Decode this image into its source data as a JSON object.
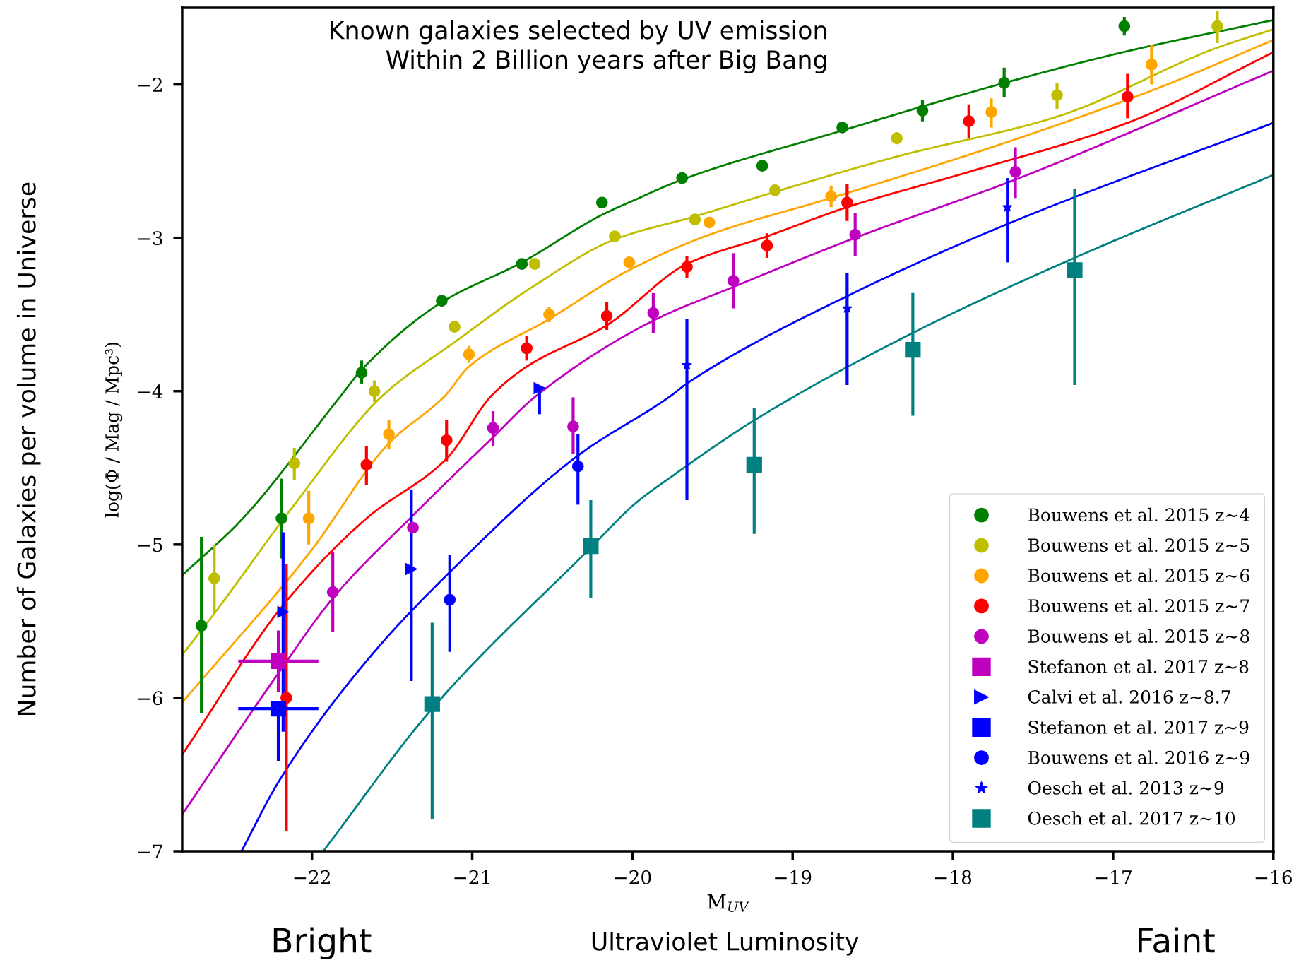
{
  "chart_data": {
    "type": "scatter",
    "xlabel": "M$_{UV}$",
    "ylabel": "log(Φ / Mag / Mpc³)",
    "xlim": [
      -22.81,
      -16
    ],
    "ylim": [
      -7,
      -1.5
    ],
    "xticks": [
      {
        "value": -22,
        "label": "−22"
      },
      {
        "value": -21,
        "label": "−21"
      },
      {
        "value": -20,
        "label": "−20"
      },
      {
        "value": -19,
        "label": "−19"
      },
      {
        "value": -18,
        "label": "−18"
      },
      {
        "value": -17,
        "label": "−17"
      },
      {
        "value": -16,
        "label": "−16"
      }
    ],
    "yticks": [
      {
        "value": -7,
        "label": "−7"
      },
      {
        "value": -6,
        "label": "−6"
      },
      {
        "value": -5,
        "label": "−5"
      },
      {
        "value": -4,
        "label": "−4"
      },
      {
        "value": -3,
        "label": "−3"
      },
      {
        "value": -2,
        "label": "−2"
      }
    ],
    "legend": "bottom right",
    "annotations": [
      "Known galaxies selected by UV emission\nWithin 2 Billion years after Big Bang",
      "Number of Galaxies per volume in Universe",
      "Bright",
      "Ultraviolet Luminosity",
      "Faint"
    ],
    "series": [
      {
        "type": "line",
        "color": "#007f00",
        "x": [
          -22.81,
          -22.45,
          -21.82,
          -21.69,
          -21.19,
          -20.69,
          -20.19,
          -19.98,
          -19.69,
          -18.69,
          -17.68,
          -16.94,
          -16.0
        ],
        "values": [
          -5.2,
          -4.85,
          -4.03,
          -3.86,
          -3.42,
          -3.16,
          -2.85,
          -2.75,
          -2.62,
          -2.3,
          -1.99,
          -1.79,
          -1.58
        ]
      },
      {
        "type": "line",
        "color": "#bfbf00",
        "x": [
          -22.81,
          -22.61,
          -22.11,
          -21.56,
          -21.11,
          -20.61,
          -20.11,
          -19.61,
          -19.11,
          -18.35,
          -17.35,
          -16.35,
          -16.0
        ],
        "values": [
          -5.72,
          -5.45,
          -4.74,
          -4.03,
          -3.68,
          -3.31,
          -3.01,
          -2.86,
          -2.7,
          -2.47,
          -2.21,
          -1.76,
          -1.64
        ]
      },
      {
        "type": "line",
        "color": "#ffa500",
        "x": [
          -22.81,
          -22.02,
          -21.52,
          -21.17,
          -21.02,
          -20.52,
          -20.02,
          -19.52,
          -18.76,
          -17.76,
          -16.76,
          -16.0
        ],
        "values": [
          -6.03,
          -5.06,
          -4.34,
          -4.03,
          -3.84,
          -3.53,
          -3.21,
          -2.98,
          -2.74,
          -2.41,
          -2.04,
          -1.71
        ]
      },
      {
        "type": "line",
        "color": "#ff0000",
        "x": [
          -22.81,
          -22.16,
          -21.66,
          -21.16,
          -20.88,
          -20.66,
          -20.16,
          -19.66,
          -19.16,
          -18.66,
          -17.9,
          -16.91,
          -16.0
        ],
        "values": [
          -6.37,
          -5.37,
          -4.83,
          -4.44,
          -4.03,
          -3.84,
          -3.57,
          -3.17,
          -2.99,
          -2.8,
          -2.57,
          -2.25,
          -1.79
        ]
      },
      {
        "type": "line",
        "color": "#bf00bf",
        "x": [
          -22.81,
          -22.21,
          -21.87,
          -21.37,
          -20.87,
          -20.6,
          -19.87,
          -19.37,
          -18.61,
          -17.61,
          -16.0
        ],
        "values": [
          -6.76,
          -5.84,
          -5.35,
          -4.81,
          -4.3,
          -4.03,
          -3.54,
          -3.32,
          -3.0,
          -2.62,
          -1.91
        ]
      },
      {
        "type": "line",
        "color": "#0000ff",
        "x": [
          -22.44,
          -22.21,
          -21.66,
          -21.14,
          -20.34,
          -19.76,
          -19.66,
          -18.66,
          -17.66,
          -16.0
        ],
        "values": [
          -7.0,
          -6.55,
          -5.76,
          -5.18,
          -4.42,
          -4.03,
          -3.95,
          -3.38,
          -2.91,
          -2.25
        ]
      },
      {
        "type": "line",
        "color": "#008080",
        "x": [
          -21.93,
          -21.25,
          -20.25,
          -19.98,
          -19.76,
          -19.24,
          -18.25,
          -17.24,
          -16.0
        ],
        "values": [
          -7.0,
          -6.07,
          -5.01,
          -4.73,
          -4.56,
          -4.19,
          -3.62,
          -3.13,
          -2.59
        ]
      },
      {
        "name": "Bouwens et al. 2015 z∼4",
        "color": "#007f00",
        "marker": "circle",
        "x": [
          -22.69,
          -22.19,
          -21.69,
          -21.19,
          -20.69,
          -20.19,
          -19.69,
          -19.19,
          -18.69,
          -18.19,
          -17.68,
          -16.93
        ],
        "values": [
          -5.53,
          -4.83,
          -3.88,
          -3.41,
          -3.17,
          -2.77,
          -2.61,
          -2.53,
          -2.28,
          -2.17,
          -1.99,
          -1.62
        ],
        "errors": [
          [
            -6.1,
            -4.95
          ],
          [
            -5.09,
            -4.57
          ],
          [
            -3.95,
            -3.8
          ],
          0.04,
          0.03,
          0.03,
          0.03,
          0.03,
          0.03,
          0.07,
          [
            -2.08,
            -1.89
          ],
          0.06
        ]
      },
      {
        "name": "Bouwens et al. 2015 z∼5",
        "color": "#bfbf00",
        "marker": "circle",
        "x": [
          -22.61,
          -22.11,
          -21.61,
          -21.11,
          -20.61,
          -20.11,
          -19.61,
          -19.11,
          -18.35,
          -17.35,
          -16.35
        ],
        "values": [
          -5.22,
          -4.47,
          -4.0,
          -3.58,
          -3.17,
          -2.99,
          -2.88,
          -2.69,
          -2.35,
          -2.07,
          -1.62
        ],
        "errors": [
          [
            -5.45,
            -5.0
          ],
          [
            -4.58,
            -4.37
          ],
          0.07,
          0.03,
          0.03,
          0.03,
          0.03,
          0.03,
          0.04,
          [
            -2.16,
            -1.99
          ],
          [
            -1.73,
            -1.52
          ]
        ]
      },
      {
        "name": "Bouwens et al. 2015 z∼6",
        "color": "#ffa500",
        "marker": "circle",
        "x": [
          -22.02,
          -21.52,
          -21.02,
          -20.52,
          -20.02,
          -19.52,
          -18.76,
          -17.76,
          -16.76
        ],
        "values": [
          -4.83,
          -4.28,
          -3.76,
          -3.5,
          -3.16,
          -2.9,
          -2.73,
          -2.18,
          -1.87
        ],
        "errors": [
          [
            -5.0,
            -4.65
          ],
          [
            -4.38,
            -4.19
          ],
          0.055,
          0.05,
          0.03,
          0.03,
          0.07,
          [
            -2.28,
            -2.09
          ],
          [
            -2.0,
            -1.74
          ]
        ]
      },
      {
        "name": "Bouwens et al. 2015 z∼7",
        "color": "#ff0000",
        "marker": "circle",
        "x": [
          -22.16,
          -21.66,
          -21.16,
          -20.66,
          -20.16,
          -19.66,
          -19.16,
          -18.66,
          -17.9,
          -16.91
        ],
        "values": [
          -6.0,
          -4.48,
          -4.32,
          -3.72,
          -3.51,
          -3.19,
          -3.05,
          -2.77,
          -2.24,
          -2.08
        ],
        "errors": [
          [
            -6.87,
            -5.13
          ],
          [
            -4.61,
            -4.36
          ],
          [
            -4.46,
            -4.19
          ],
          0.08,
          0.09,
          0.07,
          0.08,
          0.12,
          0.11,
          [
            -2.22,
            -1.93
          ]
        ]
      },
      {
        "name": "Bouwens et al. 2015 z∼8",
        "color": "#bf00bf",
        "marker": "circle",
        "x": [
          -21.87,
          -21.37,
          -20.87,
          -20.37,
          -19.87,
          -19.37,
          -18.61,
          -17.61
        ],
        "values": [
          -5.31,
          -4.89,
          -4.24,
          -4.23,
          -3.49,
          -3.28,
          -2.98,
          -2.57
        ],
        "errors": [
          [
            -5.57,
            -5.05
          ],
          null,
          [
            -4.36,
            -4.13
          ],
          [
            -4.41,
            -4.04
          ],
          [
            -3.62,
            -3.36
          ],
          [
            -3.46,
            -3.1
          ],
          [
            -3.12,
            -2.84
          ],
          [
            -2.74,
            -2.41
          ]
        ]
      },
      {
        "name": "Stefanon et al. 2017 z∼8",
        "color": "#bf00bf",
        "marker": "square",
        "x": [
          -22.21
        ],
        "values": [
          -5.76
        ],
        "errors": [
          [
            -5.96,
            -5.56
          ]
        ],
        "xerrors": [
          [
            -22.46,
            -21.96
          ]
        ]
      },
      {
        "name": "Calvi et al. 2016 z∼8.7",
        "color": "#0000ff",
        "marker": "triangle",
        "x": [
          -22.18,
          -21.38,
          -20.58
        ],
        "values": [
          -5.44,
          -5.16,
          -3.98
        ],
        "errors": [
          [
            -6.22,
            -4.92
          ],
          [
            -5.89,
            -4.64
          ],
          [
            -4.15,
            -3.98
          ]
        ]
      },
      {
        "name": "Stefanon et al. 2017 z∼9",
        "color": "#0000ff",
        "marker": "square",
        "x": [
          -22.21
        ],
        "values": [
          -6.07
        ],
        "errors": [
          [
            -6.41,
            -6.07
          ]
        ],
        "xerrors": [
          [
            -22.46,
            -21.96
          ]
        ]
      },
      {
        "name": "Bouwens et al. 2016 z∼9",
        "color": "#0000ff",
        "marker": "circle",
        "x": [
          -21.14,
          -20.34
        ],
        "values": [
          -5.36,
          -4.49
        ],
        "errors": [
          [
            -5.7,
            -5.07
          ],
          [
            -4.74,
            -4.28
          ]
        ]
      },
      {
        "name": "Oesch et al. 2013 z∼9",
        "color": "#0000ff",
        "marker": "star",
        "x": [
          -19.66,
          -18.66,
          -17.66
        ],
        "values": [
          -3.83,
          -3.46,
          -2.8
        ],
        "errors": [
          [
            -4.71,
            -3.53
          ],
          [
            -3.96,
            -3.23
          ],
          [
            -3.16,
            -2.61
          ]
        ]
      },
      {
        "name": "Oesch et al. 2017 z∼10",
        "color": "#008080",
        "marker": "square",
        "x": [
          -21.25,
          -20.26,
          -19.24,
          -18.25,
          -17.24
        ],
        "values": [
          -6.04,
          -5.01,
          -4.48,
          -3.73,
          -3.21
        ],
        "errors": [
          [
            -6.79,
            -5.51
          ],
          [
            -5.35,
            -4.71
          ],
          [
            -4.93,
            -4.11
          ],
          [
            -4.16,
            -3.36
          ],
          [
            -3.96,
            -2.68
          ]
        ]
      }
    ]
  }
}
